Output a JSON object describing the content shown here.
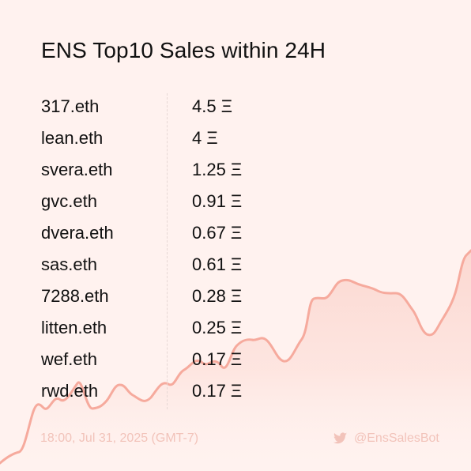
{
  "title": "ENS Top10 Sales within 24H",
  "sales": [
    {
      "name": "317.eth",
      "price": "4.5 Ξ"
    },
    {
      "name": "lean.eth",
      "price": "4 Ξ"
    },
    {
      "name": "svera.eth",
      "price": "1.25 Ξ"
    },
    {
      "name": "gvc.eth",
      "price": "0.91 Ξ"
    },
    {
      "name": "dvera.eth",
      "price": "0.67 Ξ"
    },
    {
      "name": "sas.eth",
      "price": "0.61 Ξ"
    },
    {
      "name": "7288.eth",
      "price": "0.28 Ξ"
    },
    {
      "name": "litten.eth",
      "price": "0.25 Ξ"
    },
    {
      "name": "wef.eth",
      "price": "0.17 Ξ"
    },
    {
      "name": "rwd.eth",
      "price": "0.17 Ξ"
    }
  ],
  "footer": {
    "timestamp": "18:00, Jul 31, 2025 (GMT-7)",
    "handle": "@EnsSalesBot"
  },
  "colors": {
    "background": "#fff2ef",
    "accent": "#f6b7ab",
    "footer_text": "#f2c3ba"
  },
  "icons": {
    "handle": "twitter-bird-icon"
  }
}
